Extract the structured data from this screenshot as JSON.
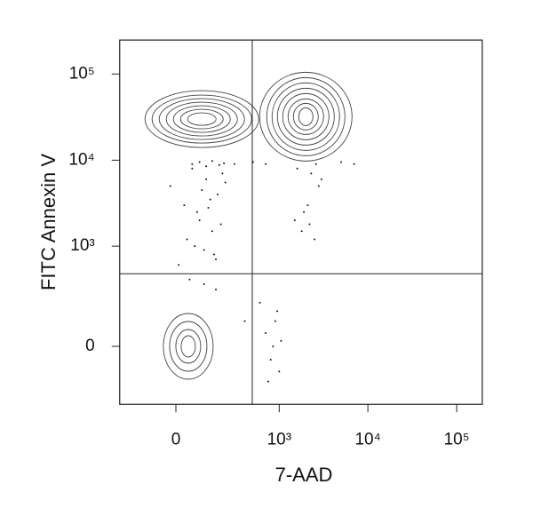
{
  "chart_data": {
    "type": "contour",
    "x_label": "7-AAD",
    "y_label": "FITC Annexin V",
    "scale": "biexponential",
    "xlim": [
      -280,
      194000
    ],
    "ylim": [
      -310,
      248000
    ],
    "xticks": [
      0,
      {
        "value": 1000,
        "label": "10³"
      },
      {
        "value": 10000,
        "label": "10⁴"
      },
      {
        "value": 100000,
        "label": "10⁵"
      }
    ],
    "yticks": [
      0,
      {
        "value": 1000,
        "label": "10³"
      },
      {
        "value": 10000,
        "label": "10⁴"
      },
      {
        "value": 100000,
        "label": "10⁵"
      }
    ],
    "gates": {
      "x": 490,
      "y": 470
    },
    "populations": [
      {
        "x": 100,
        "y": 30000
      },
      {
        "x": 2000,
        "y": 32000
      },
      {
        "x": 45,
        "y": 0
      }
    ],
    "points": {
      "x": [
        -20,
        30,
        60,
        90,
        120,
        150,
        180,
        210,
        40,
        80,
        110,
        140,
        170,
        200,
        230,
        10,
        70,
        100,
        130,
        160,
        60,
        90,
        120,
        150,
        190,
        220,
        50,
        110,
        170,
        1500,
        1800,
        2100,
        2500,
        2800,
        1600,
        2300,
        3000,
        1900,
        2600,
        2200,
        700,
        800,
        900,
        1000,
        850,
        950,
        750,
        1050,
        300,
        500,
        700,
        5000,
        7000,
        400,
        600
      ],
      "y": [
        5000,
        3000,
        8000,
        2000,
        6000,
        1500,
        4000,
        7000,
        1200,
        2500,
        900,
        3500,
        700,
        1800,
        5500,
        600,
        1000,
        4500,
        2800,
        800,
        9000,
        9500,
        8500,
        9800,
        8800,
        9200,
        400,
        350,
        300,
        2000,
        1500,
        3000,
        1200,
        5000,
        8000,
        7000,
        6000,
        2500,
        9000,
        1800,
        50,
        -50,
        100,
        -100,
        0,
        150,
        -150,
        20,
        9000,
        9500,
        9000,
        9500,
        9000,
        100,
        200
      ]
    },
    "color": "#111111"
  }
}
